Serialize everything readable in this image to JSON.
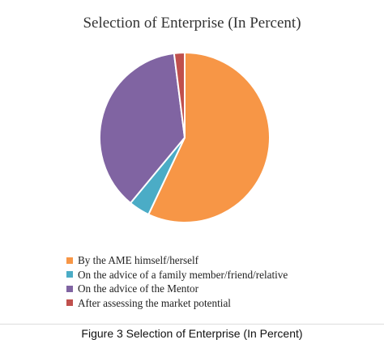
{
  "chart_data": {
    "type": "pie",
    "title": "Selection of Enterprise (In Percent)",
    "categories": [
      "By the AME himself/herself",
      "On the advice of a family member/friend/relative",
      "On the advice of the Mentor",
      "After assessing the market potential"
    ],
    "values": [
      57,
      4,
      37,
      2
    ],
    "colors": [
      "#F79646",
      "#4BACC6",
      "#8064A2",
      "#C0504D"
    ],
    "legend_position": "bottom-left"
  },
  "caption": "Figure 3 Selection of Enterprise (In Percent)"
}
